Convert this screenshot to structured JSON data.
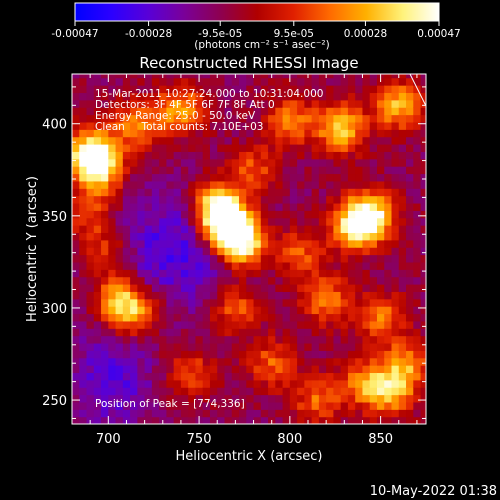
{
  "colorbar": {
    "tick_labels": [
      "-0.00047",
      "-0.00028",
      "-9.5e-05",
      "9.5e-05",
      "0.00028",
      "0.00047"
    ],
    "tick_values": [
      -0.00047,
      -0.00028,
      -9.5e-05,
      9.5e-05,
      0.00028,
      0.00047
    ],
    "units_label": "(photons cm⁻² s⁻¹ asec⁻²)",
    "range": [
      -0.00047,
      0.00047
    ],
    "colormap": [
      "#0000ff",
      "#2b00ff",
      "#5800d8",
      "#7a0099",
      "#8e0050",
      "#b00000",
      "#e02000",
      "#ff6a00",
      "#ffb000",
      "#fff27a",
      "#ffffff"
    ]
  },
  "chart_data": {
    "type": "heatmap",
    "title": "Reconstructed RHESSI Image",
    "xlabel": "Heliocentric X (arcsec)",
    "ylabel": "Heliocentric Y (arcsec)",
    "xlim": [
      680,
      875
    ],
    "ylim": [
      237,
      427
    ],
    "x_ticks": [
      700,
      750,
      800,
      850
    ],
    "y_ticks": [
      250,
      300,
      350,
      400
    ],
    "x_tick_labels": [
      "700",
      "750",
      "800",
      "850"
    ],
    "y_tick_labels": [
      "250",
      "300",
      "350",
      "400"
    ],
    "sources": [
      {
        "x": 774,
        "y": 336,
        "intensity": 0.00047
      },
      {
        "x": 760,
        "y": 355,
        "intensity": 0.00042
      },
      {
        "x": 765,
        "y": 345,
        "intensity": 0.0004
      },
      {
        "x": 845,
        "y": 350,
        "intensity": 0.00038
      },
      {
        "x": 835,
        "y": 345,
        "intensity": 0.0003
      },
      {
        "x": 690,
        "y": 385,
        "intensity": 0.00036
      },
      {
        "x": 695,
        "y": 375,
        "intensity": 0.0003
      },
      {
        "x": 828,
        "y": 398,
        "intensity": 0.00033
      },
      {
        "x": 860,
        "y": 410,
        "intensity": 0.00028
      },
      {
        "x": 740,
        "y": 408,
        "intensity": 0.00025
      },
      {
        "x": 715,
        "y": 400,
        "intensity": 0.00022
      },
      {
        "x": 800,
        "y": 402,
        "intensity": 0.0002
      },
      {
        "x": 705,
        "y": 305,
        "intensity": 0.00026
      },
      {
        "x": 715,
        "y": 298,
        "intensity": 0.00022
      },
      {
        "x": 770,
        "y": 300,
        "intensity": 0.00018
      },
      {
        "x": 820,
        "y": 305,
        "intensity": 0.0002
      },
      {
        "x": 850,
        "y": 295,
        "intensity": 0.00018
      },
      {
        "x": 855,
        "y": 255,
        "intensity": 0.00026
      },
      {
        "x": 865,
        "y": 270,
        "intensity": 0.0002
      },
      {
        "x": 840,
        "y": 260,
        "intensity": 0.00018
      },
      {
        "x": 815,
        "y": 250,
        "intensity": 0.00016
      },
      {
        "x": 790,
        "y": 270,
        "intensity": 0.00015
      },
      {
        "x": 805,
        "y": 330,
        "intensity": 0.00016
      },
      {
        "x": 690,
        "y": 350,
        "intensity": 0.00014
      },
      {
        "x": 745,
        "y": 265,
        "intensity": 0.00013
      },
      {
        "x": 700,
        "y": 330,
        "intensity": 0.00013
      },
      {
        "x": 780,
        "y": 375,
        "intensity": 0.00015
      }
    ],
    "annotations": {
      "time_range": "15-Mar-2011 10:27:24.000 to 10:31:04.000",
      "detectors": "Detectors: 3F 4F 5F 6F 7F 8F Att 0",
      "energy_range": "Energy Range: 25.0 - 50.0 keV",
      "clean_counts": "Clean     Total counts: 7.10E+03",
      "peak": "Position of Peak = [774,336]"
    },
    "peak": {
      "x": 774,
      "y": 336
    },
    "timestamp": "10-May-2022 01:38"
  }
}
